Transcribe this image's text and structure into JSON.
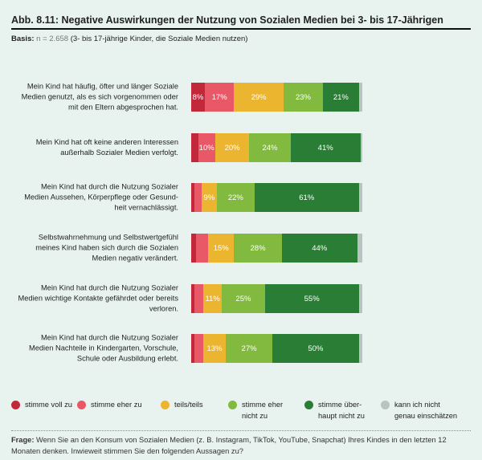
{
  "title": "Abb. 8.11: Negative Auswirkungen der Nutzung von Sozialen Medien bei 3- bis 17-Jährigen",
  "basis": {
    "label": "Basis:",
    "n": "n = 2.658",
    "text": "(3- bis 17-jährige Kinder, die Soziale Medien nutzen)"
  },
  "frage": {
    "label": "Frage:",
    "text": "Wenn Sie an den Konsum von Sozialen Medien (z. B. Instagram, TikTok, YouTube, Snapchat) Ihres Kindes in den letzten 12 Monaten denken. Inwieweit stimmen Sie den folgenden Aussagen zu?"
  },
  "chart_data": {
    "type": "bar",
    "orientation": "horizontal-stacked",
    "unit": "%",
    "categories": [
      "Mein Kind hat häufig, öfter und länger Soziale Medien genutzt, als es sich vorgenommen oder mit den Eltern abgesprochen hat.",
      "Mein Kind hat oft keine anderen Interessen außerhalb Sozialer Medien verfolgt.",
      "Mein Kind hat durch die Nutzung Sozialer Medien Aussehen, Körperpflege oder Gesund-heit vernachlässigt.",
      "Selbstwahrnehmung und Selbstwertgefühl meines Kind haben sich durch die Sozialen Medien negativ verändert.",
      "Mein Kind hat durch die Nutzung Sozialer Medien wichtige Kontakte gefährdet oder bereits verloren.",
      "Mein Kind hat durch die Nutzung Sozialer Medien Nachteile in Kindergarten, Vorschule, Schule oder Ausbildung erlebt."
    ],
    "series": [
      {
        "name": "stimme voll zu",
        "color": "#c1283a",
        "values": [
          8,
          4,
          2,
          3,
          2,
          2
        ],
        "labels": [
          "8%",
          "",
          "",
          "",
          "",
          ""
        ]
      },
      {
        "name": "stimme eher zu",
        "color": "#e85866",
        "values": [
          17,
          10,
          4,
          7,
          5,
          5
        ],
        "labels": [
          "17%",
          "10%",
          "",
          "",
          "",
          ""
        ]
      },
      {
        "name": "teils/teils",
        "color": "#ebb530",
        "values": [
          29,
          20,
          9,
          15,
          11,
          13
        ],
        "labels": [
          "29%",
          "20%",
          "9%",
          "15%",
          "11%",
          "13%"
        ]
      },
      {
        "name": "stimme eher nicht zu",
        "color": "#82b93f",
        "values": [
          23,
          24,
          22,
          28,
          25,
          27
        ],
        "labels": [
          "23%",
          "24%",
          "22%",
          "28%",
          "25%",
          "27%"
        ]
      },
      {
        "name": "stimme überhaupt nicht zu",
        "color": "#2a7d34",
        "values": [
          21,
          41,
          61,
          44,
          55,
          50
        ],
        "labels": [
          "21%",
          "41%",
          "61%",
          "44%",
          "55%",
          "50%"
        ]
      },
      {
        "name": "kann ich nicht genau einschätzen",
        "color": "#b8c3c3",
        "values": [
          2,
          1,
          2,
          3,
          2,
          2
        ],
        "labels": [
          "",
          "",
          "",
          "",
          "",
          ""
        ]
      }
    ],
    "legend": [
      "stimme voll zu",
      "stimme eher zu",
      "teils/teils",
      "stimme eher\nnicht zu",
      "stimme über-\nhaupt nicht zu",
      "kann ich nicht\ngenau einschätzen"
    ],
    "xlim": [
      0,
      100
    ]
  }
}
